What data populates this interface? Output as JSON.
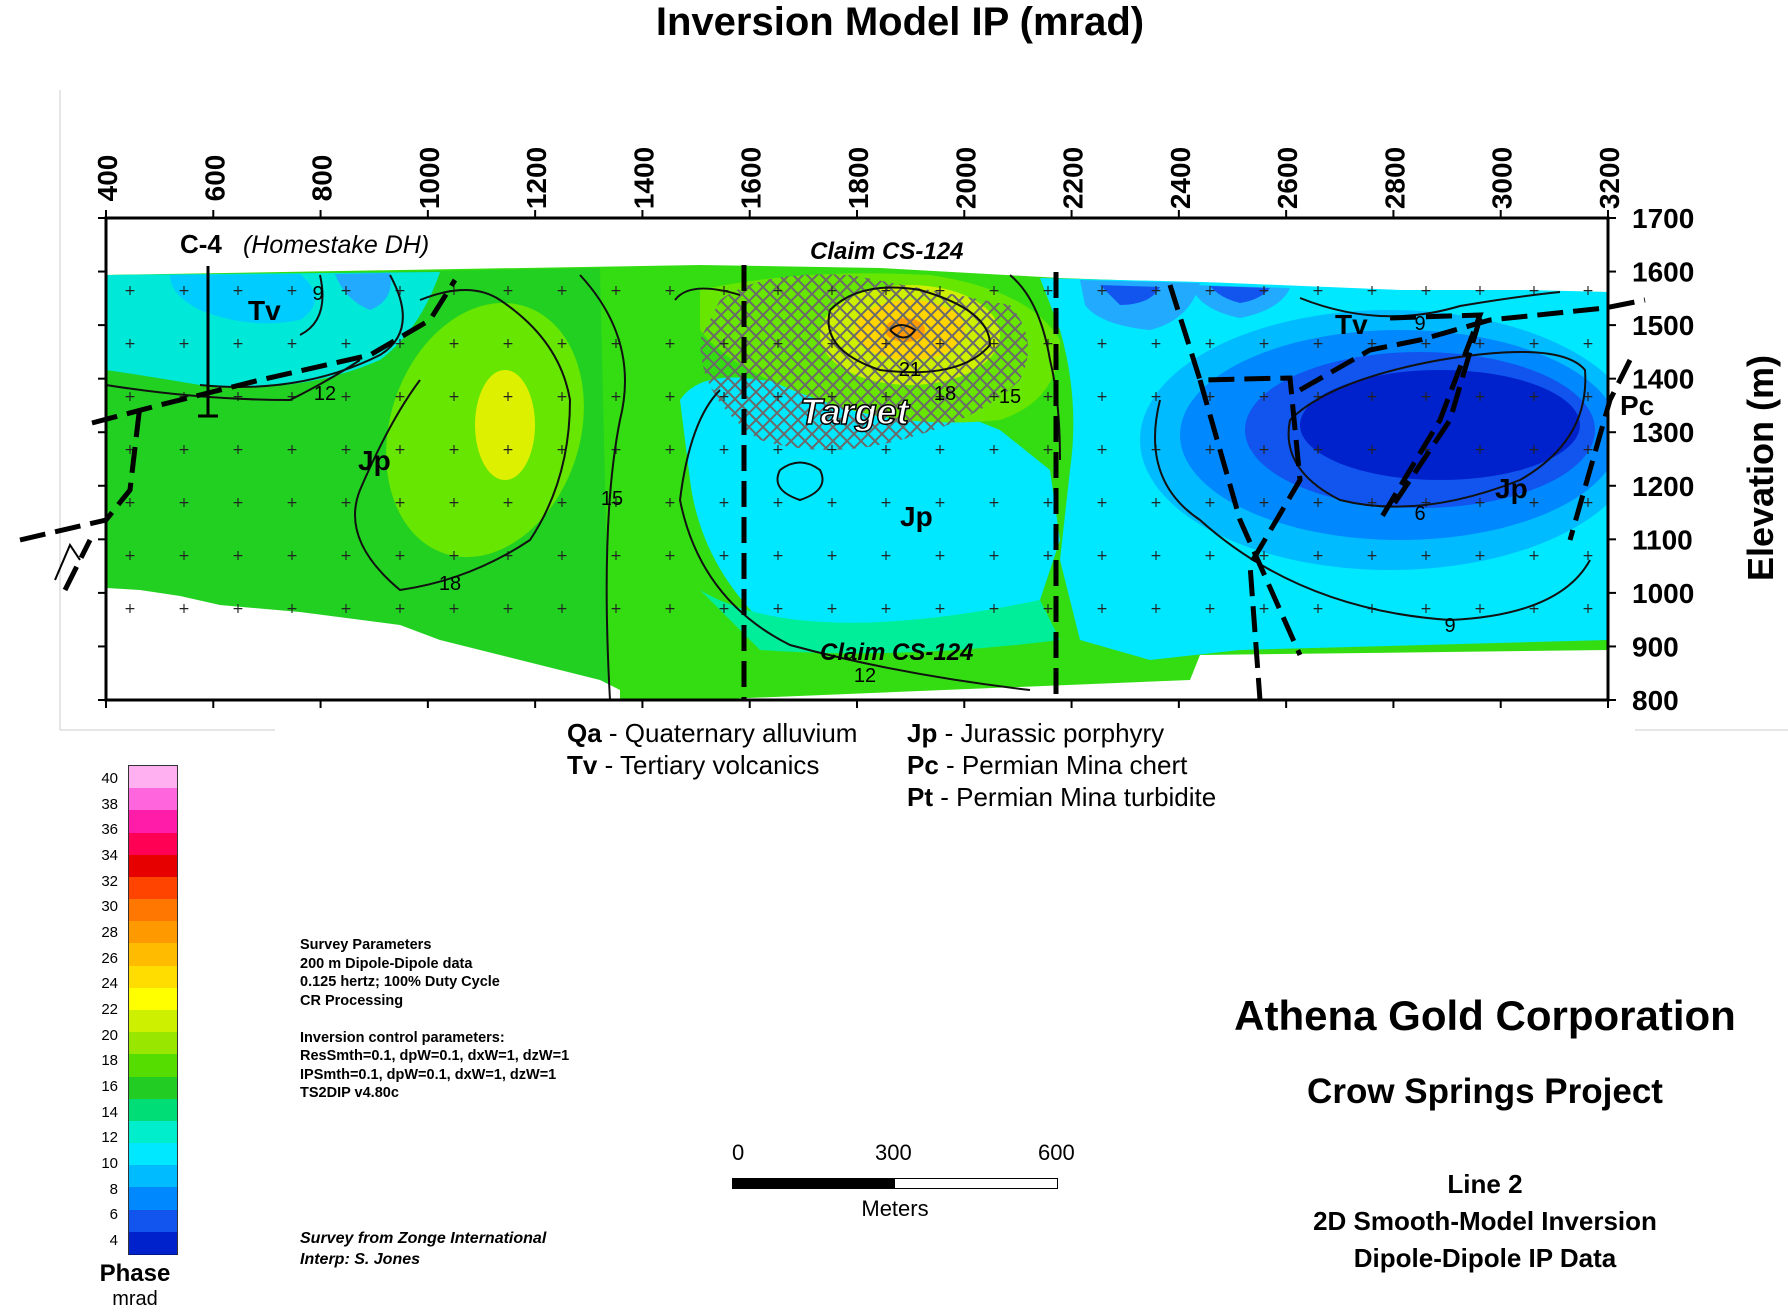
{
  "chart_data": {
    "type": "heatmap",
    "title": "Inversion Model IP (mrad)",
    "xlabel": "",
    "ylabel": "Elevation (m)",
    "x_ticks": [
      400,
      600,
      800,
      1000,
      1200,
      1400,
      1600,
      1800,
      2000,
      2200,
      2400,
      2600,
      2800,
      3000,
      3200
    ],
    "y_ticks": [
      1700,
      1600,
      1500,
      1400,
      1300,
      1200,
      1100,
      1000,
      900,
      800
    ],
    "xlim": [
      400,
      3200
    ],
    "ylim": [
      800,
      1700
    ],
    "contour_labels": [
      "9",
      "12",
      "18",
      "15",
      "21",
      "18",
      "15",
      "9",
      "6",
      "9",
      "12"
    ],
    "annotations": {
      "drillhole_code": "C-4",
      "drillhole_desc": "(Homestake DH)",
      "claim_top": "Claim CS-124",
      "claim_bottom": "Claim CS-124",
      "target": "Target",
      "units": [
        "Tv",
        "Jp",
        "Jp",
        "Jp",
        "Tv",
        "Pc"
      ]
    },
    "colorbar": {
      "title": "Phase",
      "unit": "mrad",
      "ticks": [
        40,
        38,
        36,
        34,
        32,
        30,
        28,
        26,
        24,
        22,
        20,
        18,
        16,
        14,
        12,
        10,
        8,
        6,
        4
      ],
      "colors": [
        "#ffb0f0",
        "#ff66dd",
        "#ff1ca8",
        "#ff0055",
        "#e60000",
        "#ff4400",
        "#ff7700",
        "#ff9900",
        "#ffbb00",
        "#ffdd00",
        "#ffff00",
        "#ccf000",
        "#99e600",
        "#55dd00",
        "#22cc22",
        "#00dd77",
        "#00eecc",
        "#00e8ff",
        "#00bbff",
        "#0088ff",
        "#1155ee",
        "#0022cc"
      ]
    }
  },
  "legend": {
    "qa": {
      "code": "Qa",
      "desc": " - Quaternary alluvium"
    },
    "tv": {
      "code": "Tv",
      "desc": " - Tertiary volcanics"
    },
    "jp": {
      "code": "Jp",
      "desc": " - Jurassic porphyry"
    },
    "pc": {
      "code": "Pc",
      "desc": " - Permian Mina chert"
    },
    "pt": {
      "code": "Pt",
      "desc": " - Permian Mina turbidite"
    }
  },
  "survey_parameters": "Survey Parameters\n200 m Dipole-Dipole data\n0.125 hertz; 100% Duty Cycle\nCR Processing\n\nInversion control parameters:\nResSmth=0.1, dpW=0.1, dxW=1, dzW=1\nIPSmth=0.1, dpW=0.1, dxW=1, dzW=1\nTS2DIP v4.80c",
  "credits": {
    "line1": "Survey from Zonge International",
    "line2": "Interp: S. Jones"
  },
  "scale": {
    "labels": [
      "0",
      "300",
      "600"
    ],
    "unit": "Meters"
  },
  "company": "Athena Gold Corporation",
  "project": "Crow Springs Project",
  "line_info": {
    "line": "Line 2",
    "type": "2D Smooth-Model Inversion",
    "data": "Dipole-Dipole IP Data"
  }
}
